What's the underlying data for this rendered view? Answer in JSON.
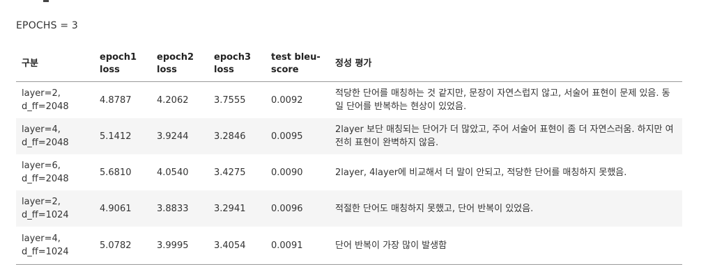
{
  "epochs_label": "EPOCHS = 3",
  "table": {
    "headers": {
      "category": "구분",
      "epoch1": "epoch1 loss",
      "epoch2": "epoch2 loss",
      "epoch3": "epoch3 loss",
      "bleu": "test bleu-score",
      "evaluation": "정성 평가"
    },
    "rows": [
      {
        "config": "layer=2, d_ff=2048",
        "epoch1": "4.8787",
        "epoch2": "4.2062",
        "epoch3": "3.7555",
        "bleu": "0.0092",
        "evaluation": "적당한 단어를 매칭하는 것 같지만, 문장이 자연스럽지 않고, 서술어 표현이 문제 있음. 동일 단어를 반복하는 현상이 있었음."
      },
      {
        "config": "layer=4, d_ff=2048",
        "epoch1": "5.1412",
        "epoch2": "3.9244",
        "epoch3": "3.2846",
        "bleu": "0.0095",
        "evaluation": "2layer 보단 매칭되는 단어가 더 많았고, 주어 서술어 표현이 좀 더 자연스러움. 하지만 여전히 표현이 완벽하지 않음."
      },
      {
        "config": "layer=6, d_ff=2048",
        "epoch1": "5.6810",
        "epoch2": "4.0540",
        "epoch3": "3.4275",
        "bleu": "0.0090",
        "evaluation": "2layer, 4layer에 비교해서 더 말이 안되고, 적당한 단어를 매칭하지 못했음."
      },
      {
        "config": "layer=2, d_ff=1024",
        "epoch1": "4.9061",
        "epoch2": "3.8833",
        "epoch3": "3.2941",
        "bleu": "0.0096",
        "evaluation": "적절한 단어도 매칭하지 못했고, 단어 반복이 있었음."
      },
      {
        "config": "layer=4, d_ff=1024",
        "epoch1": "5.0782",
        "epoch2": "3.9995",
        "epoch3": "3.4054",
        "bleu": "0.0091",
        "evaluation": "단어 반복이 가장 많이 발생함"
      }
    ]
  }
}
